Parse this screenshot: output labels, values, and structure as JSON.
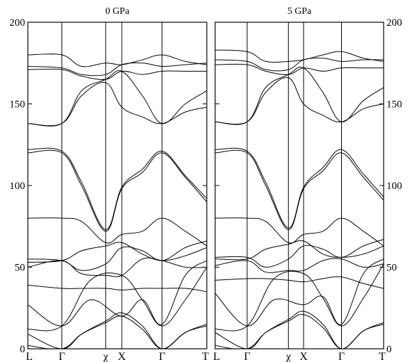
{
  "chart_data": [
    {
      "type": "line",
      "title": "0 GPa",
      "ylim": [
        0,
        200
      ],
      "yticks": [
        0,
        50,
        100,
        150,
        200
      ],
      "ytick_side": "left",
      "kpath": [
        {
          "label": "L",
          "pos": 0.0
        },
        {
          "label": "Γ",
          "pos": 0.19
        },
        {
          "label": "χ",
          "pos": 0.435
        },
        {
          "label": "X",
          "pos": 0.525
        },
        {
          "label": "Γ",
          "pos": 0.75
        },
        {
          "label": "T",
          "pos": 1.0
        }
      ],
      "bands": [
        {
          "x": [
            0,
            0.19,
            0.3,
            0.435,
            0.525,
            0.64,
            0.75,
            0.88,
            1.0
          ],
          "y": [
            2,
            0,
            9,
            16,
            20,
            12,
            0,
            10,
            14
          ]
        },
        {
          "x": [
            0,
            0.19,
            0.3,
            0.435,
            0.525,
            0.64,
            0.75,
            0.88,
            1.0
          ],
          "y": [
            9,
            0,
            9,
            17,
            22,
            14,
            0,
            10,
            15
          ]
        },
        {
          "x": [
            0,
            0.19,
            0.35,
            0.525,
            0.64,
            0.75,
            0.88,
            1.0
          ],
          "y": [
            12,
            14,
            42,
            45,
            30,
            14,
            30,
            50
          ]
        },
        {
          "x": [
            0,
            0.19,
            0.35,
            0.525,
            0.64,
            0.75,
            0.88,
            1.0
          ],
          "y": [
            27,
            14,
            30,
            20,
            30,
            15,
            45,
            54
          ]
        },
        {
          "x": [
            0,
            0.19,
            0.3,
            0.435,
            0.525,
            0.64,
            0.75,
            0.88,
            1.0
          ],
          "y": [
            39,
            37,
            37,
            37,
            36,
            37,
            37,
            37,
            35
          ]
        },
        {
          "x": [
            0,
            0.19,
            0.3,
            0.435,
            0.525,
            0.64,
            0.75,
            0.88,
            1.0
          ],
          "y": [
            50,
            54,
            46,
            45,
            45,
            55,
            54,
            50,
            50
          ]
        },
        {
          "x": [
            0,
            0.19,
            0.3,
            0.435,
            0.525,
            0.64,
            0.75,
            0.88,
            1.0
          ],
          "y": [
            53,
            54,
            60,
            63,
            65,
            58,
            54,
            57,
            62
          ]
        },
        {
          "x": [
            0,
            0.19,
            0.3,
            0.435,
            0.525,
            0.64,
            0.75,
            0.88,
            1.0
          ],
          "y": [
            55,
            54,
            48,
            52,
            62,
            60,
            54,
            62,
            66
          ]
        },
        {
          "x": [
            0,
            0.19,
            0.3,
            0.435,
            0.525,
            0.64,
            0.75,
            0.88,
            1.0
          ],
          "y": [
            80,
            80,
            78,
            65,
            70,
            72,
            80,
            72,
            63
          ]
        },
        {
          "x": [
            0,
            0.19,
            0.3,
            0.435,
            0.525,
            0.64,
            0.75,
            0.88,
            1.0
          ],
          "y": [
            120,
            120,
            100,
            72,
            98,
            108,
            120,
            105,
            90
          ]
        },
        {
          "x": [
            0,
            0.19,
            0.3,
            0.435,
            0.525,
            0.64,
            0.75,
            0.88,
            1.0
          ],
          "y": [
            122,
            121,
            102,
            73,
            99,
            110,
            121,
            106,
            92
          ]
        },
        {
          "x": [
            0,
            0.19,
            0.3,
            0.435,
            0.525,
            0.64,
            0.75,
            0.88,
            1.0
          ],
          "y": [
            138,
            138,
            155,
            163,
            148,
            142,
            138,
            145,
            148
          ]
        },
        {
          "x": [
            0,
            0.19,
            0.3,
            0.435,
            0.525,
            0.64,
            0.75,
            0.88,
            1.0
          ],
          "y": [
            138,
            138,
            158,
            165,
            170,
            155,
            138,
            150,
            158
          ]
        },
        {
          "x": [
            0,
            0.19,
            0.3,
            0.435,
            0.525,
            0.64,
            0.75,
            0.88,
            1.0
          ],
          "y": [
            171,
            171,
            167,
            165,
            170,
            168,
            170,
            170,
            170
          ]
        },
        {
          "x": [
            0,
            0.19,
            0.3,
            0.435,
            0.525,
            0.64,
            0.75,
            0.88,
            1.0
          ],
          "y": [
            173,
            172,
            168,
            168,
            174,
            175,
            173,
            174,
            175
          ]
        },
        {
          "x": [
            0,
            0.19,
            0.3,
            0.435,
            0.525,
            0.64,
            0.75,
            0.88,
            1.0
          ],
          "y": [
            180,
            180,
            173,
            175,
            174,
            177,
            180,
            176,
            174
          ]
        }
      ]
    },
    {
      "type": "line",
      "title": "5 GPa",
      "ylim": [
        0,
        200
      ],
      "yticks": [
        0,
        50,
        100,
        150,
        200
      ],
      "ytick_side": "right",
      "kpath": [
        {
          "label": "L",
          "pos": 0.0
        },
        {
          "label": "Γ",
          "pos": 0.19
        },
        {
          "label": "χ",
          "pos": 0.435
        },
        {
          "label": "X",
          "pos": 0.525
        },
        {
          "label": "Γ",
          "pos": 0.75
        },
        {
          "label": "T",
          "pos": 1.0
        }
      ],
      "bands": [
        {
          "x": [
            0,
            0.19,
            0.3,
            0.435,
            0.525,
            0.64,
            0.75,
            0.88,
            1.0
          ],
          "y": [
            2,
            0,
            10,
            17,
            21,
            13,
            0,
            11,
            15
          ]
        },
        {
          "x": [
            0,
            0.19,
            0.3,
            0.435,
            0.525,
            0.64,
            0.75,
            0.88,
            1.0
          ],
          "y": [
            10,
            0,
            10,
            18,
            23,
            15,
            0,
            11,
            16
          ]
        },
        {
          "x": [
            0,
            0.19,
            0.35,
            0.525,
            0.64,
            0.75,
            0.88,
            1.0
          ],
          "y": [
            12,
            14,
            43,
            46,
            31,
            14,
            31,
            52
          ]
        },
        {
          "x": [
            0,
            0.19,
            0.35,
            0.525,
            0.64,
            0.75,
            0.88,
            1.0
          ],
          "y": [
            34,
            14,
            30,
            27,
            32,
            15,
            46,
            55
          ]
        },
        {
          "x": [
            0,
            0.19,
            0.3,
            0.435,
            0.525,
            0.64,
            0.75,
            0.88,
            1.0
          ],
          "y": [
            42,
            43,
            43,
            42,
            41,
            43,
            44,
            40,
            37
          ]
        },
        {
          "x": [
            0,
            0.19,
            0.3,
            0.435,
            0.525,
            0.64,
            0.75,
            0.88,
            1.0
          ],
          "y": [
            51,
            54,
            47,
            48,
            48,
            54,
            55,
            50,
            52
          ]
        },
        {
          "x": [
            0,
            0.19,
            0.3,
            0.435,
            0.525,
            0.64,
            0.75,
            0.88,
            1.0
          ],
          "y": [
            55,
            55,
            61,
            64,
            66,
            58,
            56,
            58,
            63
          ]
        },
        {
          "x": [
            0,
            0.19,
            0.3,
            0.435,
            0.525,
            0.64,
            0.75,
            0.88,
            1.0
          ],
          "y": [
            56,
            56,
            50,
            55,
            63,
            61,
            56,
            63,
            67
          ]
        },
        {
          "x": [
            0,
            0.19,
            0.3,
            0.435,
            0.525,
            0.64,
            0.75,
            0.88,
            1.0
          ],
          "y": [
            80,
            80,
            78,
            65,
            70,
            72,
            80,
            72,
            63
          ]
        },
        {
          "x": [
            0,
            0.19,
            0.3,
            0.435,
            0.525,
            0.64,
            0.75,
            0.88,
            1.0
          ],
          "y": [
            120,
            120,
            100,
            73,
            98,
            109,
            120,
            105,
            91
          ]
        },
        {
          "x": [
            0,
            0.19,
            0.3,
            0.435,
            0.525,
            0.64,
            0.75,
            0.88,
            1.0
          ],
          "y": [
            122,
            121,
            102,
            74,
            99,
            111,
            122,
            107,
            93
          ]
        },
        {
          "x": [
            0,
            0.19,
            0.3,
            0.435,
            0.525,
            0.64,
            0.75,
            0.88,
            1.0
          ],
          "y": [
            139,
            139,
            157,
            166,
            150,
            143,
            139,
            147,
            150
          ]
        },
        {
          "x": [
            0,
            0.19,
            0.3,
            0.435,
            0.525,
            0.64,
            0.75,
            0.88,
            1.0
          ],
          "y": [
            139,
            139,
            160,
            168,
            172,
            157,
            139,
            152,
            160
          ]
        },
        {
          "x": [
            0,
            0.19,
            0.3,
            0.435,
            0.525,
            0.64,
            0.75,
            0.88,
            1.0
          ],
          "y": [
            174,
            174,
            170,
            168,
            172,
            170,
            172,
            172,
            172
          ]
        },
        {
          "x": [
            0,
            0.19,
            0.3,
            0.435,
            0.525,
            0.64,
            0.75,
            0.88,
            1.0
          ],
          "y": [
            177,
            176,
            171,
            171,
            177,
            178,
            176,
            177,
            177
          ]
        },
        {
          "x": [
            0,
            0.19,
            0.3,
            0.435,
            0.525,
            0.64,
            0.75,
            0.88,
            1.0
          ],
          "y": [
            183,
            182,
            176,
            176,
            177,
            180,
            182,
            178,
            176
          ]
        }
      ]
    }
  ]
}
